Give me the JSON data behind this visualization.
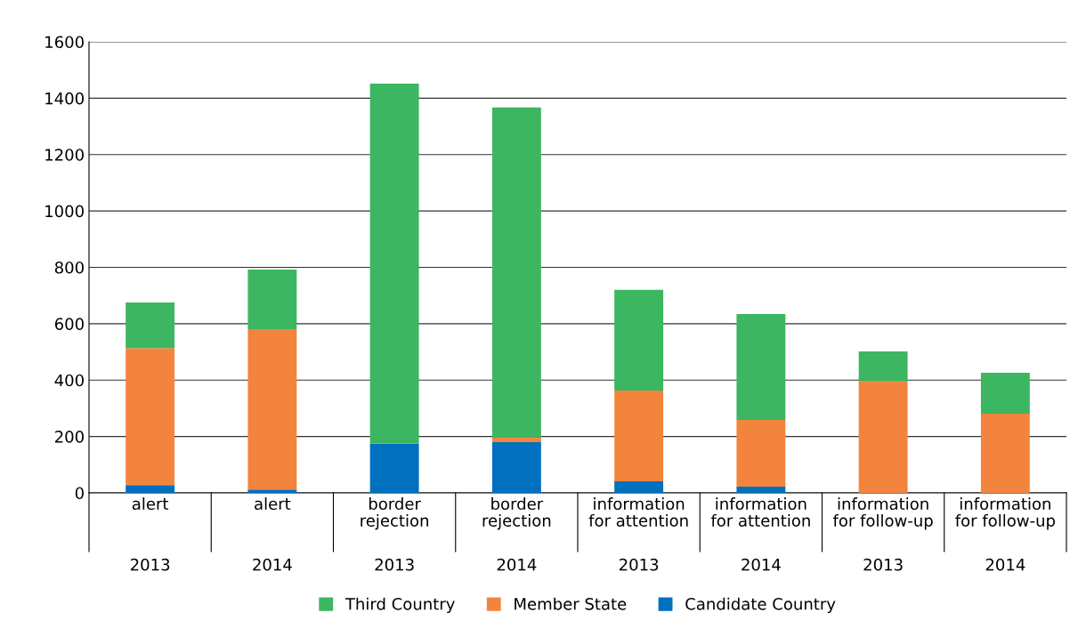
{
  "chart_data": {
    "type": "bar",
    "stacked": true,
    "categories": [
      "alert\n2013",
      "alert\n2014",
      "border\nrejection\n2013",
      "border\nrejection\n2014",
      "information\nfor attention\n2013",
      "information\nfor attention\n2014",
      "information\nfor follow-up\n2013",
      "information\nfor follow-up\n2014"
    ],
    "series": [
      {
        "name": "Candidate Country",
        "color": "#0070bf",
        "values": [
          28,
          12,
          174,
          180,
          41,
          22,
          0,
          0
        ]
      },
      {
        "name": "Member State",
        "color": "#f3843e",
        "values": [
          486,
          569,
          0,
          16,
          322,
          237,
          395,
          281
        ]
      },
      {
        "name": "Third Country",
        "color": "#3cb660",
        "values": [
          161,
          211,
          1278,
          1171,
          357,
          375,
          107,
          145
        ]
      }
    ],
    "ylim": [
      0,
      1600
    ],
    "yticks": [
      0,
      200,
      400,
      600,
      800,
      1000,
      1200,
      1400,
      1600
    ],
    "grid": "y",
    "legend": "bottom"
  }
}
